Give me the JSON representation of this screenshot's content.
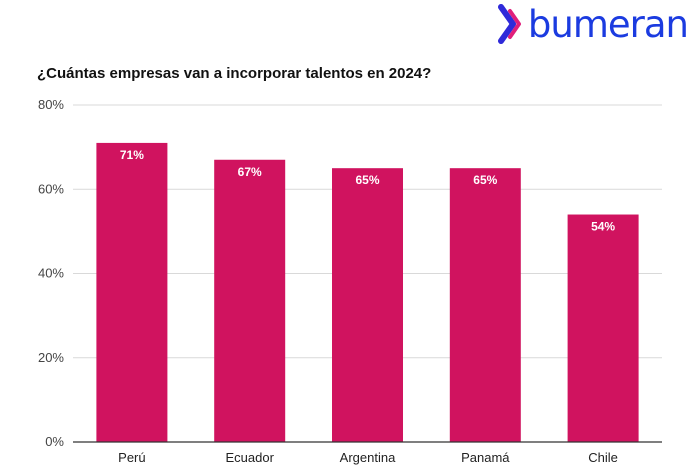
{
  "brand": {
    "name": "bumeran",
    "icon": "bumeran-logo-icon",
    "colors": {
      "text": "#1B3BE0",
      "icon_dark": "#2F2AD9",
      "icon_light": "#E01F7B"
    }
  },
  "chart_data": {
    "type": "bar",
    "title": "¿Cuántas empresas van a incorporar talentos en 2024?",
    "xlabel": "",
    "ylabel": "",
    "categories": [
      "Perú",
      "Ecuador",
      "Argentina",
      "Panamá",
      "Chile"
    ],
    "values": [
      71,
      67,
      65,
      65,
      54
    ],
    "data_labels": [
      "71%",
      "67%",
      "65%",
      "65%",
      "54%"
    ],
    "ylim": [
      0,
      80
    ],
    "yticks": [
      0,
      20,
      40,
      60,
      80
    ],
    "ytick_labels": [
      "0%",
      "20%",
      "40%",
      "60%",
      "80%"
    ],
    "grid": true,
    "legend": "none",
    "bar_color": "#D0135F"
  }
}
